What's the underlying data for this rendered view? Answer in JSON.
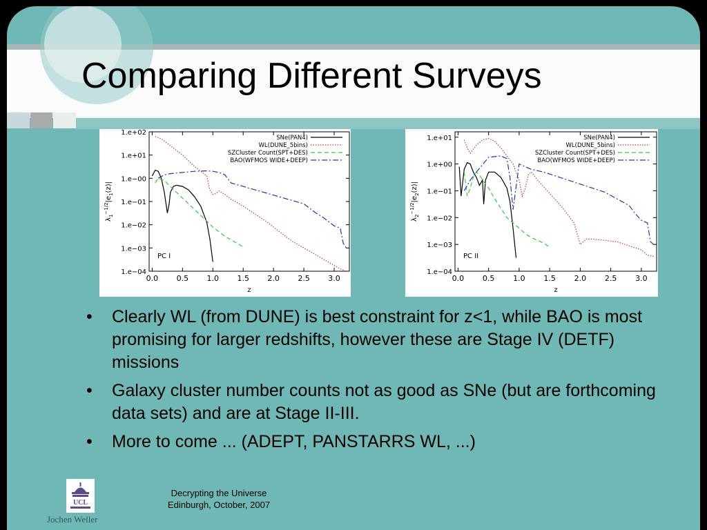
{
  "slide": {
    "title": "Comparing Different Surveys",
    "bullets": [
      "Clearly WL (from DUNE) is best constraint for z<1, while BAO is most promising for larger redshifts, however these are Stage IV (DETF) missions",
      "Galaxy cluster number counts not as good as SNe (but are forthcoming data sets) and are at Stage II-III.",
      "More to come ... (ADEPT, PANSTARRS WL, ...)"
    ],
    "bullet_symbol": "•",
    "footer": {
      "line1": "Decrypting the Universe",
      "line2": "Edinburgh, October, 2007"
    },
    "author": "Jochen Weller",
    "logo_text": "UCL"
  },
  "colors": {
    "background": "#6fb8b6",
    "banner": "#f9fbfa",
    "text": "#000000"
  },
  "chart_data": [
    {
      "type": "line",
      "panel_label": "PC I",
      "ylabel_base": "λ",
      "ylabel_sub": "1",
      "ylabel_sup": "−1/2",
      "ylabel_rest": "|e",
      "ylabel_rest_sub": "1",
      "ylabel_end": "(z)|",
      "xlabel": "z",
      "xlim": [
        -0.05,
        3.25
      ],
      "ylim": [
        -4,
        2
      ],
      "y_scale": "log",
      "x_ticks": [
        0.0,
        0.5,
        1.0,
        1.5,
        2.0,
        2.5,
        3.0
      ],
      "x_tick_labels": [
        "0.0",
        "0.5",
        "1.0",
        "1.5",
        "2.0",
        "2.5",
        "3.0"
      ],
      "y_ticks": [
        2,
        1,
        0,
        -1,
        -2,
        -3,
        -4
      ],
      "y_tick_labels": [
        "1.e+02",
        "1.e+01",
        "1.e−00",
        "1.e−01",
        "1.e−02",
        "1.e−03",
        "1.e−04"
      ],
      "legend_position": "top-right",
      "series": [
        {
          "name": "SNe(PAN4)",
          "color": "#000000",
          "dash": "",
          "x": [
            0.0,
            0.05,
            0.1,
            0.15,
            0.2,
            0.25,
            0.28,
            0.3,
            0.35,
            0.4,
            0.5,
            0.6,
            0.7,
            0.8,
            0.9,
            0.95,
            1.0
          ],
          "y": [
            0.1,
            0.35,
            0.3,
            0.0,
            -0.6,
            -1.5,
            -1.1,
            -0.6,
            -0.35,
            -0.3,
            -0.35,
            -0.5,
            -0.8,
            -1.2,
            -1.9,
            -2.6,
            -3.6
          ]
        },
        {
          "name": "WL(DUNE_5bins)",
          "color": "#c23b2a",
          "dash": "1.5,2",
          "x": [
            0.05,
            0.15,
            0.25,
            0.35,
            0.5,
            0.6,
            0.7,
            0.8,
            0.9,
            0.95,
            1.0,
            1.05,
            1.1,
            1.2,
            1.3,
            1.5,
            1.7,
            1.9,
            2.1,
            2.3,
            2.5,
            2.7,
            2.9,
            3.1,
            3.2
          ],
          "y": [
            1.8,
            1.7,
            1.5,
            1.3,
            1.0,
            0.75,
            0.5,
            0.3,
            0.1,
            -0.5,
            -0.7,
            -0.65,
            -0.55,
            -0.7,
            -0.9,
            -1.2,
            -1.55,
            -1.9,
            -2.3,
            -2.7,
            -3.0,
            -3.3,
            -3.6,
            -3.9,
            -4.0
          ]
        },
        {
          "name": "SZCluster Count(SPT+DES)",
          "color": "#2ecf2e",
          "dash": "6,4",
          "x": [
            0.05,
            0.1,
            0.2,
            0.3,
            0.4,
            0.5,
            0.6,
            0.7,
            0.8,
            0.9,
            1.0,
            1.1,
            1.2,
            1.3,
            1.4,
            1.5
          ],
          "y": [
            -0.2,
            0.0,
            -0.1,
            -0.35,
            -0.6,
            -0.85,
            -1.1,
            -1.35,
            -1.6,
            -1.85,
            -2.1,
            -2.3,
            -2.5,
            -2.65,
            -2.8,
            -2.95
          ]
        },
        {
          "name": "BAO(WFMOS WIDE+DEEP)",
          "color": "#1f2ecf",
          "dash": "8,3,2,3",
          "x": [
            0.1,
            0.2,
            0.3,
            0.5,
            0.7,
            0.9,
            1.0,
            1.1,
            1.2,
            1.3,
            1.5,
            1.7,
            1.9,
            2.1,
            2.3,
            2.5,
            2.7,
            2.8,
            2.9,
            3.0,
            3.1,
            3.15,
            3.2
          ],
          "y": [
            0.0,
            0.15,
            0.2,
            0.25,
            0.3,
            0.32,
            0.3,
            0.25,
            0.15,
            -0.2,
            -0.35,
            -0.5,
            -0.65,
            -0.8,
            -0.95,
            -1.1,
            -1.5,
            -1.65,
            -1.85,
            -2.05,
            -2.15,
            -2.8,
            -3.0
          ]
        }
      ]
    },
    {
      "type": "line",
      "panel_label": "PC II",
      "ylabel_base": "λ",
      "ylabel_sub": "2",
      "ylabel_sup": "−1/2",
      "ylabel_rest": "|e",
      "ylabel_rest_sub": "2",
      "ylabel_end": "(z)|",
      "xlabel": "z",
      "xlim": [
        -0.05,
        3.25
      ],
      "ylim": [
        -4,
        1.2
      ],
      "y_scale": "log",
      "x_ticks": [
        0.0,
        0.5,
        1.0,
        1.5,
        2.0,
        2.5,
        3.0
      ],
      "x_tick_labels": [
        "0.0",
        "0.5",
        "1.0",
        "1.5",
        "2.0",
        "2.5",
        "3.0"
      ],
      "y_ticks": [
        1,
        0,
        -1,
        -2,
        -3,
        -4
      ],
      "y_tick_labels": [
        "1.e+01",
        "1.e+00",
        "1.e−01",
        "1.e−02",
        "1.e−03",
        "1.e−04"
      ],
      "legend_position": "top-right",
      "series": [
        {
          "name": "SNe(PAN4)",
          "color": "#000000",
          "dash": "",
          "x": [
            0.02,
            0.05,
            0.1,
            0.15,
            0.2,
            0.25,
            0.3,
            0.35,
            0.4,
            0.42,
            0.45,
            0.5,
            0.6,
            0.7,
            0.8,
            0.85,
            0.9,
            0.95
          ],
          "y": [
            -0.1,
            -1.2,
            -0.2,
            0.05,
            0.0,
            -0.3,
            -0.5,
            -0.8,
            -0.6,
            -1.5,
            -0.6,
            -0.3,
            -0.3,
            -0.5,
            -0.9,
            -1.4,
            -2.4,
            -3.5
          ]
        },
        {
          "name": "WL(DUNE_5bins)",
          "color": "#c23b2a",
          "dash": "1.5,2",
          "x": [
            0.1,
            0.15,
            0.2,
            0.3,
            0.4,
            0.5,
            0.6,
            0.7,
            0.8,
            0.9,
            1.0,
            1.05,
            1.1,
            1.15,
            1.2,
            1.3,
            1.5,
            1.7,
            1.9,
            2.0,
            2.1,
            2.2,
            2.4,
            2.6,
            2.8,
            3.0,
            3.1,
            3.2
          ],
          "y": [
            0.9,
            0.6,
            0.4,
            0.7,
            0.9,
            0.95,
            0.85,
            0.6,
            0.3,
            0.0,
            -0.6,
            -1.2,
            -0.9,
            -0.4,
            -0.3,
            -0.6,
            -1.1,
            -1.6,
            -2.2,
            -3.0,
            -2.8,
            -2.8,
            -2.85,
            -2.9,
            -3.05,
            -3.2,
            -3.4,
            -3.45
          ]
        },
        {
          "name": "SZCluster Count(SPT+DES)",
          "color": "#2ecf2e",
          "dash": "6,4",
          "x": [
            0.1,
            0.15,
            0.2,
            0.25,
            0.3,
            0.35,
            0.4,
            0.5,
            0.6,
            0.7,
            0.8,
            0.9,
            1.0,
            1.1,
            1.2,
            1.3,
            1.4,
            1.5
          ],
          "y": [
            -0.3,
            -1.2,
            -0.9,
            -0.5,
            -0.3,
            -0.4,
            -0.6,
            -0.9,
            -1.3,
            -1.65,
            -2.0,
            -2.2,
            -2.4,
            -2.6,
            -2.75,
            -2.85,
            -2.95,
            -3.1
          ]
        },
        {
          "name": "BAO(WFMOS WIDE+DEEP)",
          "color": "#1f2ecf",
          "dash": "8,3,2,3",
          "x": [
            0.1,
            0.2,
            0.3,
            0.5,
            0.7,
            0.8,
            0.85,
            0.9,
            1.0,
            1.2,
            1.4,
            1.6,
            1.8,
            2.0,
            2.2,
            2.4,
            2.6,
            2.8,
            2.9,
            3.0,
            3.1,
            3.15,
            3.2
          ],
          "y": [
            -1.0,
            -0.6,
            -0.3,
            0.25,
            0.3,
            0.2,
            -0.5,
            -1.7,
            0.0,
            -0.2,
            -0.3,
            -0.45,
            -0.6,
            -0.75,
            -0.9,
            -1.05,
            -1.3,
            -1.55,
            -1.85,
            -2.1,
            -2.2,
            -2.9,
            -3.0
          ]
        }
      ]
    }
  ]
}
